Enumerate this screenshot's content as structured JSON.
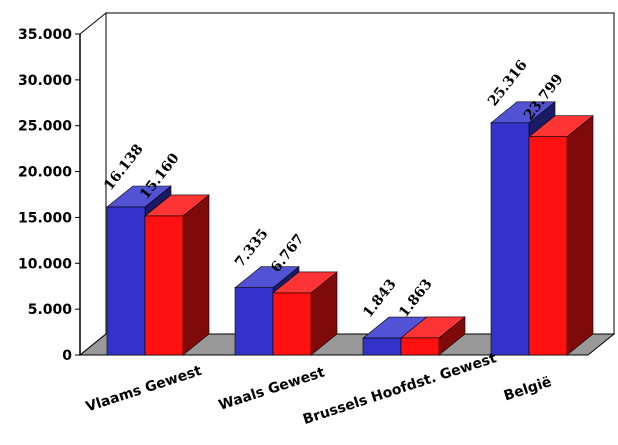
{
  "chart_data": {
    "type": "bar",
    "style": "3d-clustered",
    "categories": [
      "Vlaams Gewest",
      "Waals Gewest",
      "Brussels Hoofdst. Gewest",
      "België"
    ],
    "series": [
      {
        "values": [
          16138,
          7335,
          1843,
          25316
        ],
        "color": "#3333cc",
        "value_labels": [
          "16.138",
          "7.335",
          "1.843",
          "25.316"
        ]
      },
      {
        "values": [
          15160,
          6767,
          1863,
          23799
        ],
        "color": "#ff1111",
        "value_labels": [
          "15.160",
          "6.767",
          "1.863",
          "23.799"
        ]
      }
    ],
    "ylim": [
      0,
      35000
    ],
    "yticks": [
      0,
      5000,
      10000,
      15000,
      20000,
      25000,
      30000,
      35000
    ],
    "ytick_labels": [
      "0",
      "5.000",
      "10.000",
      "15.000",
      "20.000",
      "25.000",
      "30.000",
      "35.000"
    ],
    "grid": false,
    "legend": "none",
    "colors": {
      "floor": "#999999",
      "wall": "#ffffff"
    }
  }
}
